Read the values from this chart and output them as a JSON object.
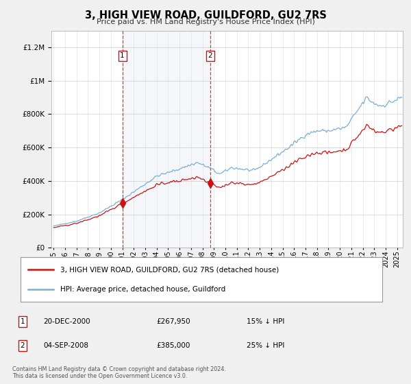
{
  "title": "3, HIGH VIEW ROAD, GUILDFORD, GU2 7RS",
  "subtitle": "Price paid vs. HM Land Registry's House Price Index (HPI)",
  "legend_line1": "3, HIGH VIEW ROAD, GUILDFORD, GU2 7RS (detached house)",
  "legend_line2": "HPI: Average price, detached house, Guildford",
  "transaction1_date": "20-DEC-2000",
  "transaction1_price": "£267,950",
  "transaction1_note": "15% ↓ HPI",
  "transaction1_year": 2001.0,
  "transaction1_price_val": 267950,
  "transaction2_date": "04-SEP-2008",
  "transaction2_price": "£385,000",
  "transaction2_note": "25% ↓ HPI",
  "transaction2_year": 2008.67,
  "transaction2_price_val": 385000,
  "footer": "Contains HM Land Registry data © Crown copyright and database right 2024.\nThis data is licensed under the Open Government Licence v3.0.",
  "background_color": "#f0f0f0",
  "plot_bg_color": "#ffffff",
  "hpi_color": "#7bafd4",
  "price_color": "#cc1111",
  "vline_color": "#cc1111",
  "ylim_max": 1300000,
  "xlim_start": 1995.0,
  "xlim_end": 2025.5
}
